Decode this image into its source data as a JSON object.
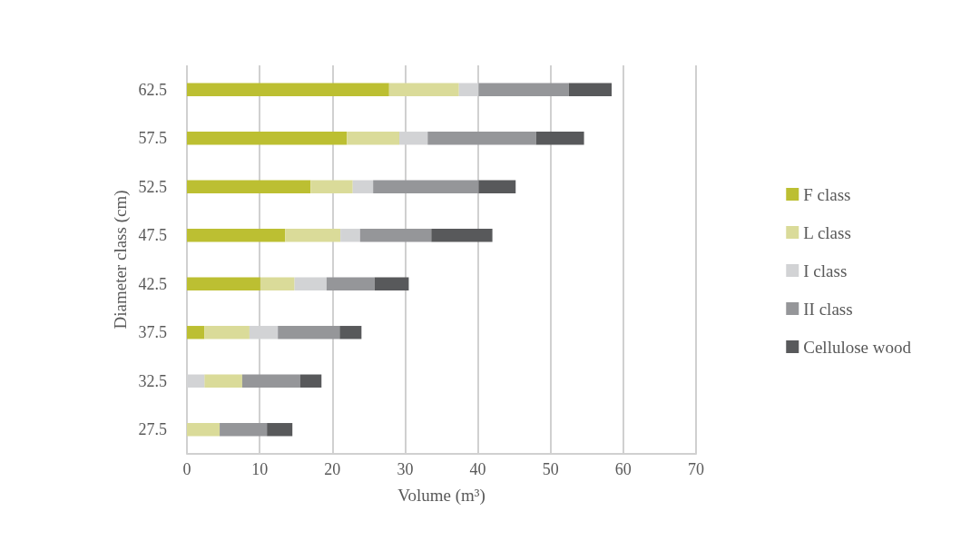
{
  "chart_data": {
    "type": "bar",
    "orientation": "horizontal",
    "xlabel": "Volume (m³)",
    "ylabel": "Diameter class (cm)",
    "categories": [
      "62.5",
      "57.5",
      "52.5",
      "47.5",
      "42.5",
      "37.5",
      "32.5",
      "27.5"
    ],
    "series": [
      {
        "name": "F class",
        "color": "#bcbf32",
        "base": [
          0,
          0,
          0,
          0,
          0,
          0,
          null,
          null
        ],
        "values": [
          27.8,
          22.0,
          17.0,
          13.5,
          10.1,
          2.4,
          null,
          null
        ]
      },
      {
        "name": "L class",
        "color": "#dadb99",
        "base": [
          27.8,
          22.0,
          17.0,
          13.5,
          10.1,
          2.4,
          2.4,
          0
        ],
        "values": [
          9.6,
          7.2,
          5.8,
          7.6,
          4.7,
          6.2,
          5.2,
          4.5
        ]
      },
      {
        "name": "I class",
        "color": "#d2d3d5",
        "base": [
          37.4,
          29.2,
          22.8,
          21.1,
          14.8,
          8.6,
          0,
          null
        ],
        "values": [
          2.7,
          3.9,
          2.8,
          2.7,
          4.4,
          3.9,
          2.4,
          null
        ]
      },
      {
        "name": "II class",
        "color": "#959699",
        "base": [
          40.1,
          33.1,
          25.6,
          23.8,
          19.2,
          12.5,
          7.6,
          4.5
        ],
        "values": [
          12.4,
          14.9,
          14.5,
          9.8,
          6.6,
          8.5,
          8.0,
          6.5
        ]
      },
      {
        "name": "Cellulose wood",
        "color": "#58595b",
        "base": [
          52.5,
          48.0,
          40.1,
          33.6,
          25.8,
          21.0,
          15.6,
          11.0
        ],
        "values": [
          5.9,
          6.6,
          5.1,
          8.4,
          4.7,
          3.0,
          2.9,
          3.5
        ]
      }
    ],
    "xlim": [
      0,
      70
    ],
    "xticks": [
      0,
      10,
      20,
      30,
      40,
      50,
      60,
      70
    ],
    "grid": "x",
    "legend": "right"
  }
}
